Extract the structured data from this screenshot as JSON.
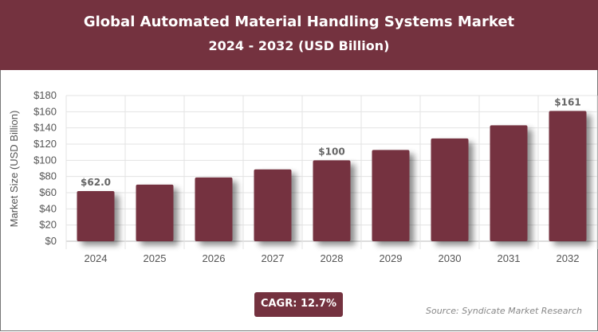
{
  "header": {
    "title": "Global Automated Material Handling Systems Market",
    "subtitle": "2024 - 2032 (USD Billion)"
  },
  "chart_data": {
    "type": "bar",
    "title": "Global Automated Material Handling Systems Market",
    "subtitle": "2024 - 2032 (USD Billion)",
    "xlabel": "",
    "ylabel": "Market Size (USD Billion)",
    "categories": [
      "2024",
      "2025",
      "2026",
      "2027",
      "2028",
      "2029",
      "2030",
      "2031",
      "2032"
    ],
    "values": [
      62.0,
      69.9,
      78.8,
      88.8,
      100,
      112.7,
      127.0,
      143.2,
      161
    ],
    "data_labels": {
      "0": "$62.0",
      "4": "$100",
      "8": "$161"
    },
    "ylim": [
      0,
      180
    ],
    "yticks": [
      0,
      20,
      40,
      60,
      80,
      100,
      120,
      140,
      160,
      180
    ],
    "ytick_labels": [
      "$0",
      "$20",
      "$40",
      "$60",
      "$80",
      "$100",
      "$120",
      "$140",
      "$160",
      "$180"
    ],
    "grid": true,
    "bar_color": "#74323F"
  },
  "footer": {
    "cagr": "CAGR: 12.7%",
    "source": "Source: Syndicate Market Research"
  }
}
